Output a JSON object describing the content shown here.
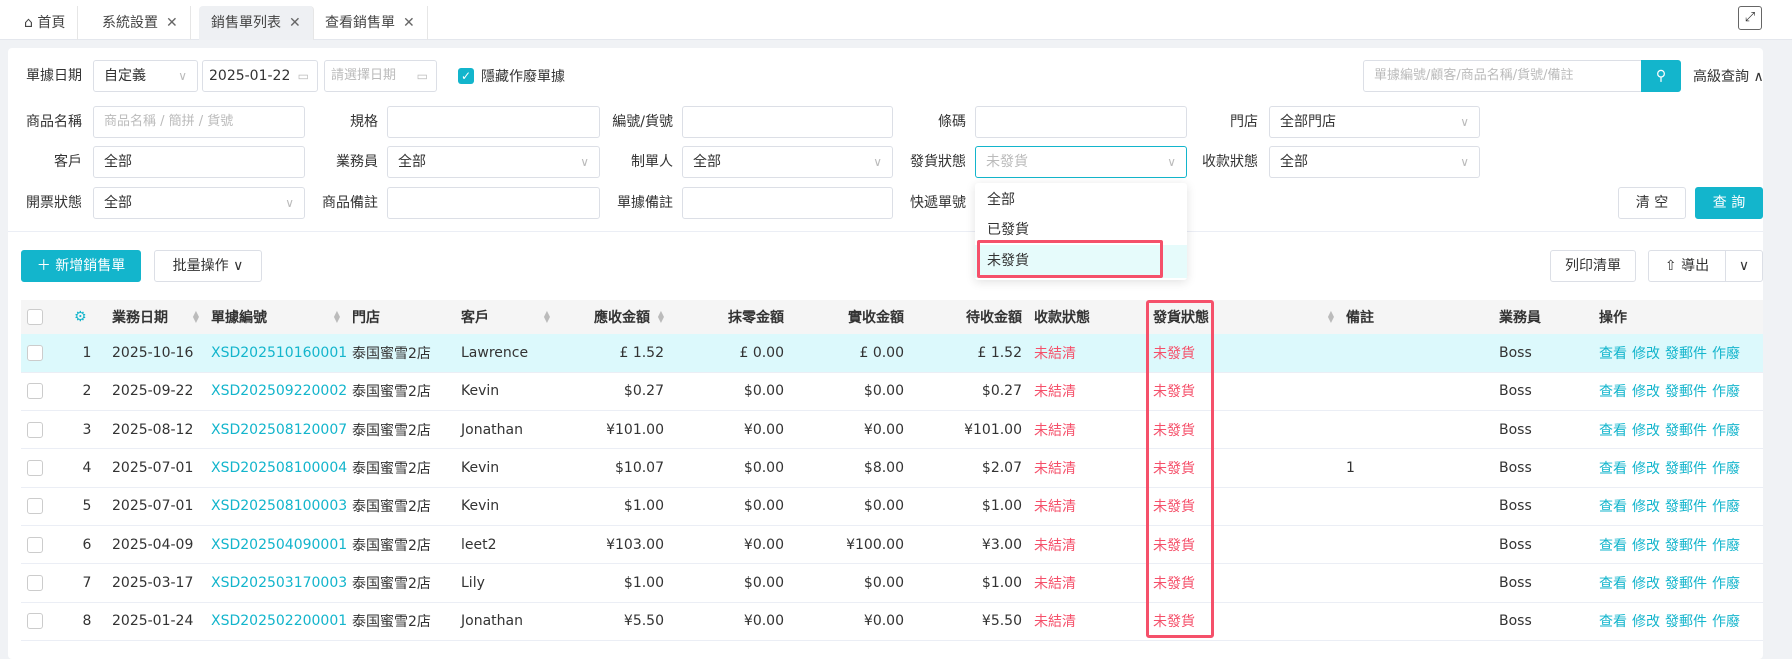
{
  "tabs": [
    {
      "label": "首頁",
      "icon": "home-icon"
    },
    {
      "label": "系統設置",
      "closable": true
    },
    {
      "label": "銷售單列表",
      "closable": true,
      "active": true
    },
    {
      "label": "查看銷售單",
      "closable": true
    }
  ],
  "close_glyph": "✕",
  "filters": {
    "date_label": "單據日期",
    "date_mode": "自定義",
    "date_start": "2025-01-22",
    "date_end_placeholder": "請選擇日期",
    "hide_void_label": "隱藏作廢單據",
    "hide_void_checked": true,
    "search_placeholder": "單據編號/顧客/商品名稱/貨號/備註",
    "advanced_label": "高級查詢",
    "product_name_label": "商品名稱",
    "product_name_placeholder": "商品名稱 / 簡拼 / 貨號",
    "spec_label": "規格",
    "code_label": "編號/貨號",
    "barcode_label": "條碼",
    "store_label": "門店",
    "store_value": "全部門店",
    "customer_label": "客戶",
    "customer_value": "全部",
    "salesman_label": "業務員",
    "salesman_value": "全部",
    "maker_label": "制單人",
    "maker_value": "全部",
    "ship_label": "發貨狀態",
    "ship_placeholder": "未發貨",
    "pay_label": "收款狀態",
    "pay_value": "全部",
    "invoice_label": "開票狀態",
    "invoice_value": "全部",
    "product_note_label": "商品備註",
    "order_note_label": "單據備註",
    "express_label": "快遞單號",
    "clear_label": "清 空",
    "query_label": "查 詢"
  },
  "dropdown": {
    "options": [
      "全部",
      "已發貨",
      "未發貨"
    ],
    "highlighted": "未發貨"
  },
  "toolbar": {
    "add_label": "新增銷售單",
    "batch_label": "批量操作",
    "print_label": "列印清單",
    "export_label": "導出"
  },
  "table": {
    "headers": [
      "業務日期",
      "單據編號",
      "門店",
      "客戶",
      "應收金額",
      "抹零金額",
      "實收金額",
      "待收金額",
      "收款狀態",
      "發貨狀態",
      "備註",
      "業務員",
      "操作"
    ],
    "actions": [
      "查看",
      "修改",
      "發郵件",
      "作廢"
    ],
    "rows": [
      [
        "1",
        "2025-10-16",
        "XSD202510160001",
        "泰国蜜雪2店",
        "Lawrence",
        "£ 1.52",
        "£ 0.00",
        "£ 0.00",
        "£ 1.52",
        "未結清",
        "未發貨",
        "",
        "Boss"
      ],
      [
        "2",
        "2025-09-22",
        "XSD202509220002",
        "泰国蜜雪2店",
        "Kevin",
        "$0.27",
        "$0.00",
        "$0.00",
        "$0.27",
        "未結清",
        "未發貨",
        "",
        "Boss"
      ],
      [
        "3",
        "2025-08-12",
        "XSD202508120007",
        "泰国蜜雪2店",
        "Jonathan",
        "¥101.00",
        "¥0.00",
        "¥0.00",
        "¥101.00",
        "未結清",
        "未發貨",
        "",
        "Boss"
      ],
      [
        "4",
        "2025-07-01",
        "XSD202508100004",
        "泰国蜜雪2店",
        "Kevin",
        "$10.07",
        "$0.00",
        "$8.00",
        "$2.07",
        "未結清",
        "未發貨",
        "1",
        "Boss"
      ],
      [
        "5",
        "2025-07-01",
        "XSD202508100003",
        "泰国蜜雪2店",
        "Kevin",
        "$1.00",
        "$0.00",
        "$0.00",
        "$1.00",
        "未結清",
        "未發貨",
        "",
        "Boss"
      ],
      [
        "6",
        "2025-04-09",
        "XSD202504090001",
        "泰国蜜雪2店",
        "leet2",
        "¥103.00",
        "¥0.00",
        "¥100.00",
        "¥3.00",
        "未結清",
        "未發貨",
        "",
        "Boss"
      ],
      [
        "7",
        "2025-03-17",
        "XSD202503170003",
        "泰国蜜雪2店",
        "Lily",
        "$1.00",
        "$0.00",
        "$0.00",
        "$1.00",
        "未結清",
        "未發貨",
        "",
        "Boss"
      ],
      [
        "8",
        "2025-01-24",
        "XSD202502200001",
        "泰国蜜雪2店",
        "Jonathan",
        "¥5.50",
        "¥0.00",
        "¥0.00",
        "¥5.50",
        "未結清",
        "未發貨",
        "",
        "Boss"
      ]
    ]
  },
  "colors": {
    "accent": "#13b5cc",
    "status_red": "#f5506a",
    "highlight_box": "#f5506a",
    "selected_row": "#dcf9fc"
  }
}
